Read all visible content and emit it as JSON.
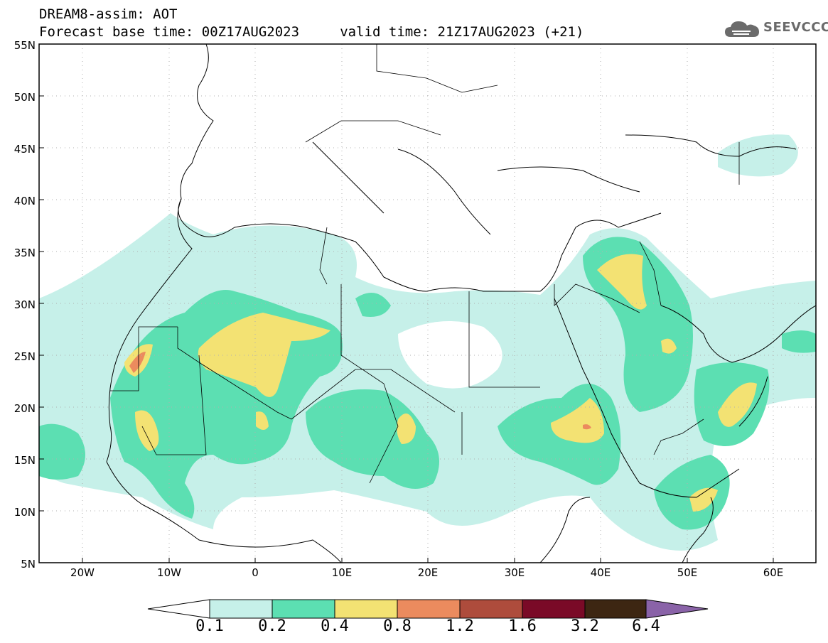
{
  "title": {
    "line1": "DREAM8-assim: AOT",
    "line2": "Forecast base time: 00Z17AUG2023     valid time: 21Z17AUG2023 (+21)"
  },
  "logo": {
    "text": "SEEVCCC",
    "icon": "cloud-icon"
  },
  "map": {
    "type": "filled-contour",
    "variable": "AOT",
    "lat_labels": [
      "55N",
      "50N",
      "45N",
      "40N",
      "35N",
      "30N",
      "25N",
      "20N",
      "15N",
      "10N",
      "5N"
    ],
    "lon_labels": [
      "20W",
      "10W",
      "0",
      "10E",
      "20E",
      "30E",
      "40E",
      "50E",
      "60E"
    ],
    "grid": true,
    "colors": {
      "frame": "#000000",
      "coast": "#000000",
      "grid": "#b0b0b0"
    }
  },
  "colorbar": {
    "labels": [
      "0.1",
      "0.2",
      "0.4",
      "0.8",
      "1.2",
      "1.6",
      "3.2",
      "6.4"
    ],
    "colors": [
      "#c6f0e9",
      "#5cdfb2",
      "#f3e273",
      "#eb8b5e",
      "#ae4c3c",
      "#7a0a27",
      "#3d2612",
      "#8a63a8"
    ],
    "extend": "both"
  }
}
